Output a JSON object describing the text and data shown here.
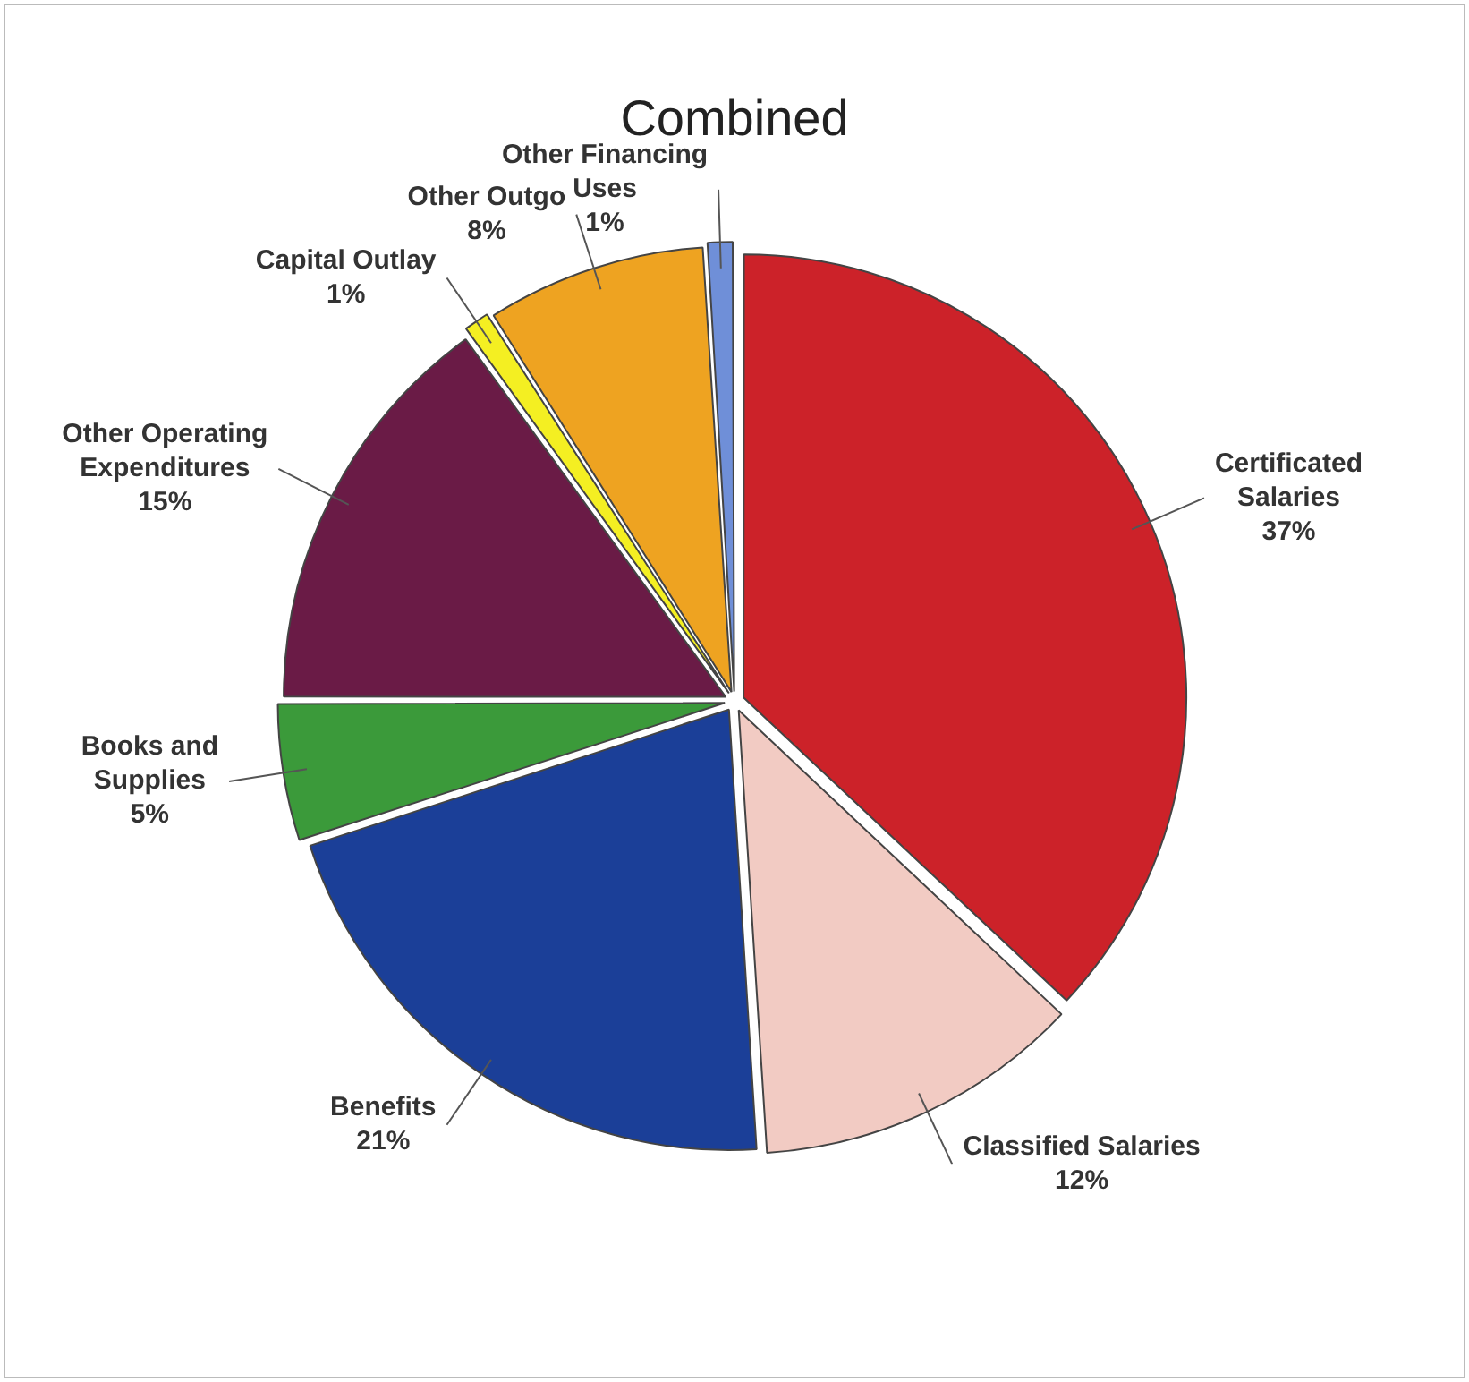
{
  "chart_data": {
    "type": "pie",
    "title": "Combined",
    "categories": [
      "Certificated Salaries",
      "Classified Salaries",
      "Benefits",
      "Books and Supplies",
      "Other Operating Expenditures",
      "Capital Outlay",
      "Other Outgo",
      "Other Financing Uses"
    ],
    "values": [
      37,
      12,
      21,
      5,
      15,
      1,
      8,
      1
    ],
    "value_labels": [
      "37%",
      "12%",
      "21%",
      "5%",
      "15%",
      "1%",
      "8%",
      "1%"
    ],
    "colors": [
      "#cc2229",
      "#f2cbc3",
      "#1b3f98",
      "#3b9a3a",
      "#6a1b46",
      "#f4ef22",
      "#eea321",
      "#6f8fd8"
    ],
    "legend": false
  }
}
